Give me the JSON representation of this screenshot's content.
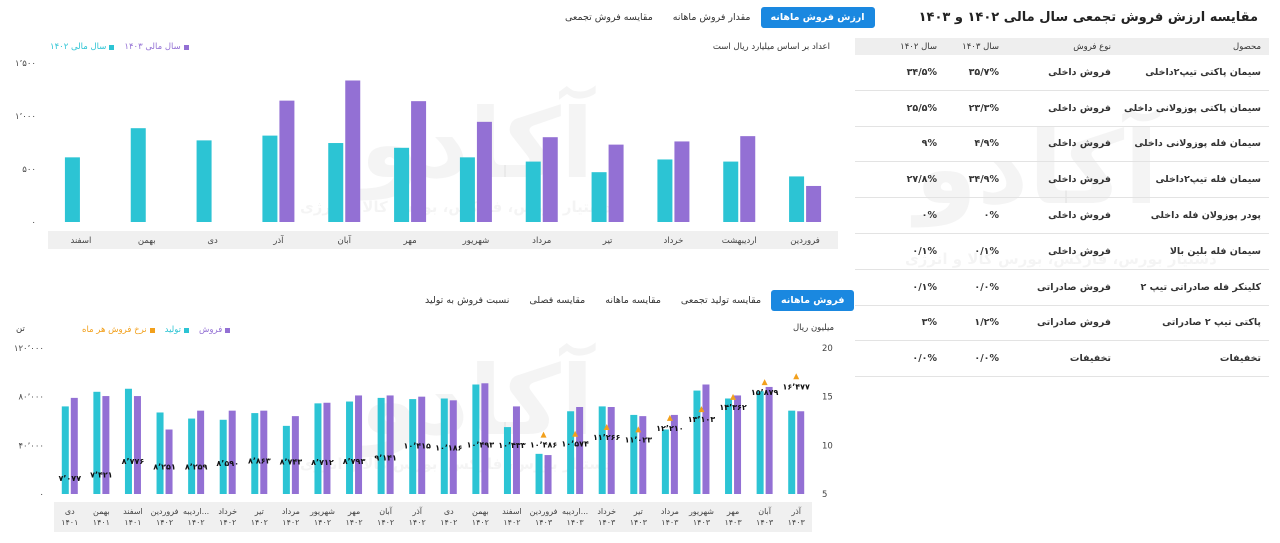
{
  "table": {
    "title": "مقایسه ارزش فروش تجمعی سال مالی ۱۴۰۲ و ۱۴۰۳",
    "export_icon": "excel-icon",
    "headers": {
      "product": "محصول",
      "sale_type": "نوع فروش",
      "y1403": "سال ۱۴۰۳",
      "y1402": "سال ۱۴۰۲"
    },
    "rows": [
      {
        "product": "سیمان پاکتی تیپ۲داخلی",
        "sale_type": "فروش داخلی",
        "y1403": "۳۵/۷%",
        "y1402": "۳۴/۵%"
      },
      {
        "product": "سیمان پاکتی پوزولانی داخلی",
        "sale_type": "فروش داخلی",
        "y1403": "۲۳/۳%",
        "y1402": "۲۵/۵%"
      },
      {
        "product": "سیمان فله پوزولانی داخلی",
        "sale_type": "فروش داخلی",
        "y1403": "۴/۹%",
        "y1402": "۹%"
      },
      {
        "product": "سیمان فله تیپ۲داخلی",
        "sale_type": "فروش داخلی",
        "y1403": "۳۴/۹%",
        "y1402": "۲۷/۸%"
      },
      {
        "product": "پودر پوزولان فله داخلی",
        "sale_type": "فروش داخلی",
        "y1403": "۰%",
        "y1402": "۰%"
      },
      {
        "product": "سیمان فله بلین بالا",
        "sale_type": "فروش داخلی",
        "y1403": "۰/۱%",
        "y1402": "۰/۱%"
      },
      {
        "product": "کلینکر فله صادراتی تیپ ۲",
        "sale_type": "فروش صادراتی",
        "y1403": "۰/۰%",
        "y1402": "۰/۱%"
      },
      {
        "product": "پاکتی تیپ ۲ صادراتی",
        "sale_type": "فروش صادراتی",
        "y1403": "۱/۲%",
        "y1402": "۳%"
      },
      {
        "product": "تخفیفات",
        "sale_type": "تخفیفات",
        "y1403": "۰/۰%",
        "y1402": "۰/۰%"
      }
    ]
  },
  "top_tabs": [
    {
      "label": "ارزش فروش ماهانه",
      "active": true
    },
    {
      "label": "مقدار فروش ماهانه",
      "active": false
    },
    {
      "label": "مقایسه فروش تجمعی",
      "active": false
    }
  ],
  "bottom_tabs": [
    {
      "label": "فروش ماهانه",
      "active": true
    },
    {
      "label": "مقایسه تولید تجمعی",
      "active": false
    },
    {
      "label": "مقایسه ماهانه",
      "active": false
    },
    {
      "label": "مقایسه فصلی",
      "active": false
    },
    {
      "label": "نسبت فروش به تولید",
      "active": false
    }
  ],
  "watermark": {
    "brand": "آکادو",
    "tagline": "دستیار بورس، فارکس، بورس کالا و انرژی"
  },
  "colors": {
    "y1402": "#2cc4d4",
    "y1403": "#9370d4",
    "sales": "#9370d4",
    "production": "#2cc4d4",
    "rate": "#f2a01c",
    "active_tab": "#1a88e0"
  },
  "chart_data": [
    {
      "type": "bar",
      "note": "اعداد بر اساس میلیارد ریال است",
      "categories": [
        "فروردین",
        "اردیبهشت",
        "خرداد",
        "تیر",
        "مرداد",
        "شهریور",
        "مهر",
        "آبان",
        "آذر",
        "دی",
        "بهمن",
        "اسفند"
      ],
      "series": [
        {
          "name": "سال مالی ۱۴۰۲",
          "color": "#2cc4d4",
          "values": [
            430,
            570,
            590,
            470,
            570,
            610,
            700,
            745,
            815,
            770,
            885,
            610
          ]
        },
        {
          "name": "سال مالی ۱۴۰۳",
          "color": "#9370d4",
          "values": [
            340,
            810,
            760,
            730,
            800,
            945,
            1140,
            1335,
            1145,
            null,
            null,
            null
          ]
        }
      ],
      "ylim": [
        0,
        1500
      ],
      "yticks": [
        "۰",
        "۵۰۰",
        "۱٬۰۰۰",
        "۱٬۵۰۰"
      ],
      "grid": false,
      "legend_position": "top-left"
    },
    {
      "type": "bar",
      "left_axis_label": "تن",
      "right_axis_label": "میلیون ریال",
      "categories": [
        [
          "دی",
          "۱۴۰۱"
        ],
        [
          "بهمن",
          "۱۴۰۱"
        ],
        [
          "اسفند",
          "۱۴۰۱"
        ],
        [
          "فروردین",
          "۱۴۰۲"
        ],
        [
          "اردیبه...",
          "۱۴۰۲"
        ],
        [
          "خرداد",
          "۱۴۰۲"
        ],
        [
          "تیر",
          "۱۴۰۲"
        ],
        [
          "مرداد",
          "۱۴۰۲"
        ],
        [
          "شهریور",
          "۱۴۰۲"
        ],
        [
          "مهر",
          "۱۴۰۲"
        ],
        [
          "آبان",
          "۱۴۰۲"
        ],
        [
          "آذر",
          "۱۴۰۲"
        ],
        [
          "دی",
          "۱۴۰۲"
        ],
        [
          "بهمن",
          "۱۴۰۲"
        ],
        [
          "اسفند",
          "۱۴۰۲"
        ],
        [
          "فروردین",
          "۱۴۰۳"
        ],
        [
          "اردیبه...",
          "۱۴۰۳"
        ],
        [
          "خرداد",
          "۱۴۰۳"
        ],
        [
          "تیر",
          "۱۴۰۳"
        ],
        [
          "مرداد",
          "۱۴۰۳"
        ],
        [
          "شهریور",
          "۱۴۰۳"
        ],
        [
          "مهر",
          "۱۴۰۳"
        ],
        [
          "آبان",
          "۱۴۰۳"
        ],
        [
          "آذر",
          "۱۴۰۳"
        ]
      ],
      "series": [
        {
          "name": "فروش",
          "color": "#9370d4",
          "axis": "left",
          "values": [
            79000,
            80500,
            80500,
            53000,
            68500,
            68500,
            68500,
            64000,
            75000,
            81000,
            81000,
            80000,
            77000,
            91000,
            72000,
            32000,
            71500,
            71500,
            64000,
            65000,
            90000,
            81000,
            88000,
            68000
          ]
        },
        {
          "name": "تولید",
          "color": "#2cc4d4",
          "axis": "left",
          "values": [
            72000,
            84000,
            86500,
            67000,
            62000,
            61000,
            66500,
            56000,
            74500,
            76000,
            79000,
            78000,
            78500,
            90000,
            55000,
            33000,
            68000,
            72000,
            65000,
            53000,
            85000,
            78500,
            84500,
            68500
          ]
        },
        {
          "name": "نرخ فروش هر ماه",
          "color": "#f2a01c",
          "axis": "right",
          "marker": "triangle",
          "values": [
            7.077,
            7.421,
            8.776,
            8.251,
            8.259,
            8.59,
            8.863,
            8.743,
            8.712,
            8.793,
            9.141,
            10.415,
            10.186,
            10.493,
            10.433,
            10.486,
            10.574,
            11.266,
            11.023,
            12.21,
            13.103,
            14.362,
            15.879,
            16.477
          ]
        }
      ],
      "value_labels": [
        "۷٬۰۷۷",
        "۷٬۴۲۱",
        "۸٬۷۷۶",
        "۸٬۲۵۱",
        "۸٬۲۵۹",
        "۸٬۵۹۰",
        "۸٬۸۶۳",
        "۸٬۷۴۳",
        "۸٬۷۱۲",
        "۸٬۷۹۳",
        "۹٬۱۴۱",
        "۱۰٬۴۱۵",
        "۱۰٬۱۸۶",
        "۱۰٬۴۹۳",
        "۱۰٬۴۳۳",
        "۱۰٬۴۸۶",
        "۱۰٬۵۷۴",
        "۱۱٬۲۶۶",
        "۱۱٬۰۲۳",
        "۱۲٬۲۱۰",
        "۱۳٬۱۰۳",
        "۱۴٬۳۶۲",
        "۱۵٬۸۷۹",
        "۱۶٬۴۷۷"
      ],
      "ylim_left": [
        0,
        120000
      ],
      "ylim_right": [
        5,
        20
      ],
      "yticks_left": [
        "۰",
        "۴۰٬۰۰۰",
        "۸۰٬۰۰۰",
        "۱۲۰٬۰۰۰"
      ],
      "yticks_right": [
        "5",
        "10",
        "15",
        "20"
      ],
      "grid": false,
      "legend_position": "top-left"
    }
  ]
}
